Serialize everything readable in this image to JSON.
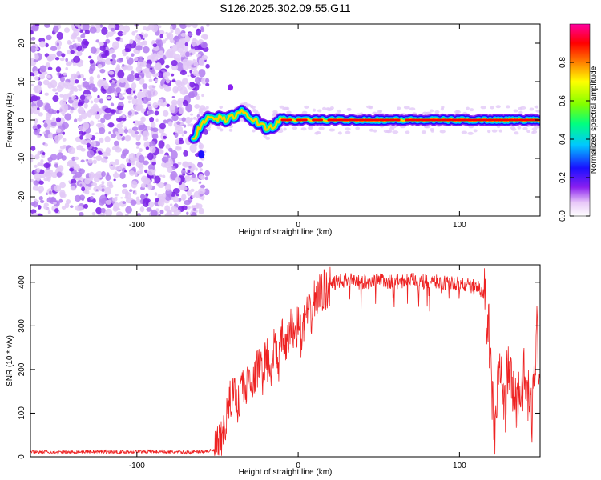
{
  "page": {
    "title": "S126.2025.302.09.55.G11"
  },
  "colors": {
    "snr_line": "#ee2222",
    "scatter": "#7a1fe6",
    "axis": "#000000",
    "colorbar_stops": [
      "#ffffff",
      "#e8c8f8",
      "#8a1ff0",
      "#1a10ff",
      "#00c8ff",
      "#00ff80",
      "#80ff00",
      "#ffff00",
      "#ff8000",
      "#ff0000",
      "#ff00a0"
    ]
  },
  "chart_data": [
    {
      "type": "heatmap",
      "title": "",
      "xlabel": "Height of straight line (km)",
      "ylabel": "Frequency (Hz)",
      "xlim": [
        -166,
        150
      ],
      "ylim": [
        -25,
        25
      ],
      "xticks": [
        -100,
        0,
        100
      ],
      "yticks": [
        -20,
        -10,
        0,
        10,
        20
      ],
      "colorbar": {
        "label": "Normalized spectral amplitude",
        "range": [
          0,
          1
        ],
        "ticks": [
          0.0,
          0.2,
          0.4,
          0.6,
          0.8
        ]
      },
      "noise_region_x": [
        -166,
        -60
      ],
      "ridge": {
        "description_points_x": [
          -65,
          -60,
          -55,
          -50,
          -45,
          -40,
          -35,
          -30,
          -25,
          -20,
          -15,
          -10,
          0,
          50,
          100,
          150
        ],
        "description_points_y": [
          -5,
          -1,
          0.5,
          0.5,
          0,
          1,
          2,
          0.5,
          -0.5,
          -2,
          -1.5,
          0,
          0,
          0,
          0,
          0
        ]
      },
      "grid": false
    },
    {
      "type": "line",
      "title": "",
      "xlabel": "Height of straight line (km)",
      "ylabel": "SNR (10 * v/v)",
      "xlim": [
        -166,
        150
      ],
      "ylim": [
        0,
        440
      ],
      "xticks": [
        -100,
        0,
        100
      ],
      "yticks": [
        0,
        100,
        200,
        300,
        400
      ],
      "series": [
        {
          "name": "",
          "x": [
            -166,
            -150,
            -130,
            -110,
            -90,
            -70,
            -60,
            -52,
            -48,
            -45,
            -42,
            -40,
            -37,
            -35,
            -33,
            -30,
            -28,
            -25,
            -22,
            -20,
            -17,
            -15,
            -12,
            -10,
            -7,
            -5,
            -2,
            0,
            2,
            5,
            8,
            10,
            13,
            15,
            18,
            20,
            25,
            30,
            40,
            50,
            60,
            70,
            80,
            90,
            100,
            110,
            115,
            118,
            120,
            122,
            125,
            128,
            130,
            135,
            140,
            145,
            148,
            150
          ],
          "y": [
            12,
            10,
            12,
            11,
            12,
            10,
            12,
            15,
            30,
            80,
            130,
            150,
            120,
            180,
            140,
            200,
            160,
            210,
            190,
            240,
            180,
            250,
            220,
            270,
            240,
            300,
            280,
            310,
            270,
            330,
            320,
            360,
            370,
            380,
            385,
            395,
            400,
            405,
            400,
            405,
            400,
            405,
            400,
            400,
            395,
            390,
            380,
            300,
            150,
            60,
            220,
            100,
            200,
            120,
            180,
            90,
            300,
            150
          ]
        }
      ],
      "grid": false
    }
  ]
}
